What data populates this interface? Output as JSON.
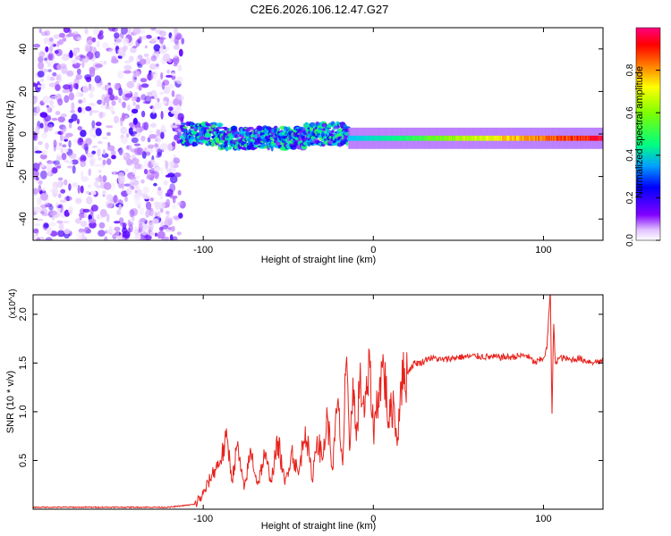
{
  "figure_title": "C2E6.2026.106.12.47.G27",
  "chart_data": [
    {
      "type": "heatmap",
      "title": "C2E6.2026.106.12.47.G27",
      "xlabel": "Height of straight line (km)",
      "ylabel": "Frequency (Hz)",
      "xlim": [
        -200,
        135
      ],
      "ylim": [
        -50,
        50
      ],
      "x_ticks": [
        -100,
        0,
        100
      ],
      "y_ticks": [
        -40,
        -20,
        0,
        20,
        40
      ],
      "x_tick_labels": [
        "-100",
        "0",
        "100"
      ],
      "y_tick_labels": [
        "-40",
        "-20",
        "0",
        "20",
        "40"
      ],
      "colorbar": {
        "label": "Normalized spectral amplitude",
        "range": [
          0,
          1
        ],
        "ticks": [
          0.0,
          0.2,
          0.4,
          0.6,
          0.8
        ],
        "tick_labels": [
          "0.0",
          "0.2",
          "0.4",
          "0.6",
          "0.8"
        ],
        "colormap": [
          "#ffffff",
          "#c080ff",
          "#6000ff",
          "#0000ff",
          "#00c8ff",
          "#00ff80",
          "#80ff00",
          "#ffff00",
          "#ff8000",
          "#ff0000",
          "#ff0080"
        ]
      },
      "regions": [
        {
          "name": "noise",
          "x_range": [
            -200,
            -112
          ],
          "f_range": [
            -50,
            50
          ],
          "amplitude_range": [
            0.02,
            0.25
          ]
        },
        {
          "name": "signal_onset",
          "x_range": [
            -112,
            -15
          ],
          "center_freq": 0,
          "bandwidth": 10,
          "amplitude_range": [
            0.15,
            0.55
          ]
        },
        {
          "name": "signal_strong",
          "x_range": [
            -15,
            135
          ],
          "center_freq": -2,
          "bandwidth": 6,
          "amplitude_range": [
            0.4,
            1.0
          ]
        }
      ]
    },
    {
      "type": "line",
      "xlabel": "Height of straight line (km)",
      "ylabel": "SNR (10 * v/v)",
      "y_multiplier": "(x10^4)",
      "xlim": [
        -200,
        135
      ],
      "ylim": [
        0,
        2.2
      ],
      "x_ticks": [
        -100,
        0,
        100
      ],
      "y_ticks": [
        0.5,
        1.0,
        1.5,
        2.0
      ],
      "x_tick_labels": [
        "-100",
        "0",
        "100"
      ],
      "y_tick_labels": [
        "0.5",
        "1.0",
        "1.5",
        "2.0"
      ],
      "color": "#e8231d",
      "series": [
        {
          "name": "SNR",
          "x": [
            -200,
            -160,
            -120,
            -105,
            -100,
            -95,
            -90,
            -86,
            -83,
            -80,
            -76,
            -72,
            -68,
            -64,
            -60,
            -56,
            -52,
            -48,
            -44,
            -40,
            -36,
            -33,
            -30,
            -27,
            -24,
            -21,
            -18,
            -16,
            -14,
            -12,
            -10,
            -8,
            -5,
            -2,
            0,
            3,
            6,
            9,
            12,
            14,
            16,
            20,
            24,
            28,
            32,
            36,
            40,
            50,
            60,
            70,
            80,
            90,
            95,
            100,
            102,
            104,
            105,
            106,
            107,
            109,
            112,
            116,
            120,
            126,
            130,
            135
          ],
          "y": [
            0.02,
            0.02,
            0.02,
            0.05,
            0.15,
            0.35,
            0.5,
            0.72,
            0.3,
            0.65,
            0.2,
            0.6,
            0.25,
            0.55,
            0.3,
            0.7,
            0.25,
            0.6,
            0.35,
            0.85,
            0.3,
            0.75,
            0.5,
            0.95,
            0.4,
            1.1,
            0.45,
            1.5,
            0.6,
            1.35,
            0.7,
            1.3,
            1.0,
            1.45,
            0.8,
            1.2,
            1.5,
            0.9,
            1.1,
            0.65,
            1.3,
            1.4,
            1.5,
            1.5,
            1.55,
            1.55,
            1.53,
            1.56,
            1.57,
            1.56,
            1.56,
            1.58,
            1.5,
            1.55,
            1.65,
            2.25,
            0.98,
            1.9,
            1.5,
            1.55,
            1.55,
            1.53,
            1.55,
            1.52,
            1.51,
            1.52
          ]
        }
      ]
    }
  ]
}
